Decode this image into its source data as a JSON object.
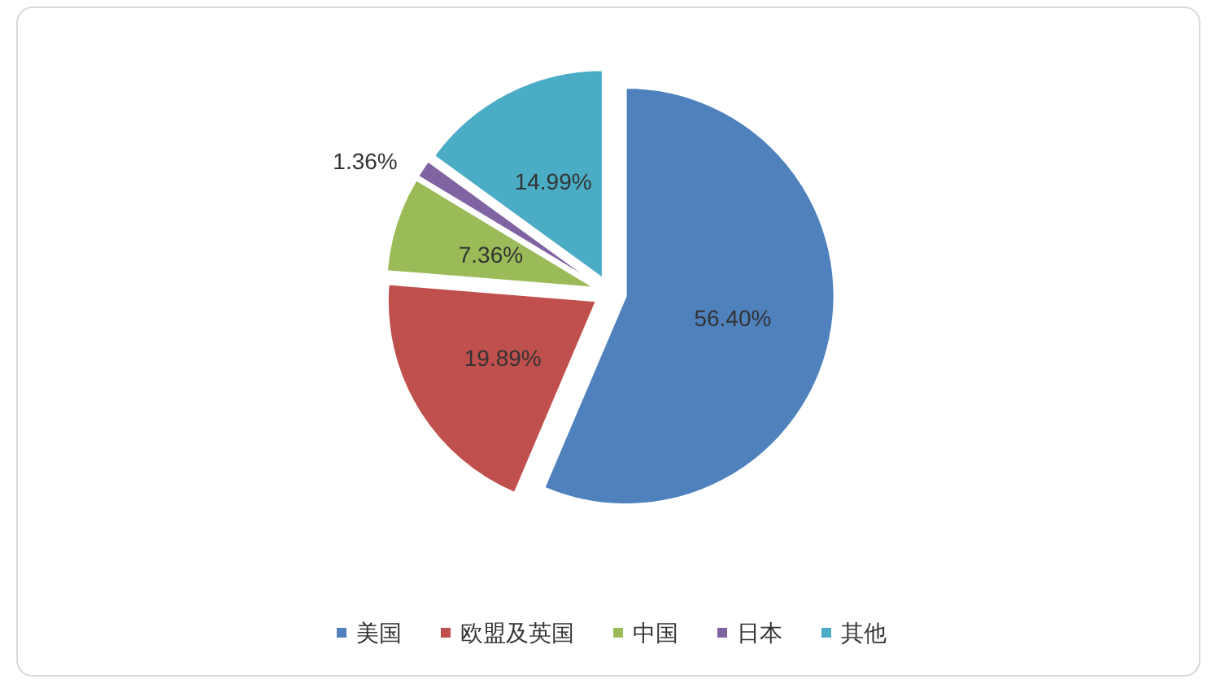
{
  "chart_data": {
    "type": "pie",
    "categories": [
      "美国",
      "欧盟及英国",
      "中国",
      "日本",
      "其他"
    ],
    "values": [
      56.4,
      19.89,
      7.36,
      1.36,
      14.99
    ],
    "colors": [
      "#4f81bd",
      "#c0504d",
      "#9bbb59",
      "#8064a2",
      "#4bacc6"
    ],
    "value_labels": [
      "56.40%",
      "19.89%",
      "7.36%",
      "1.36%",
      "14.99%"
    ],
    "legend": "bottom"
  }
}
